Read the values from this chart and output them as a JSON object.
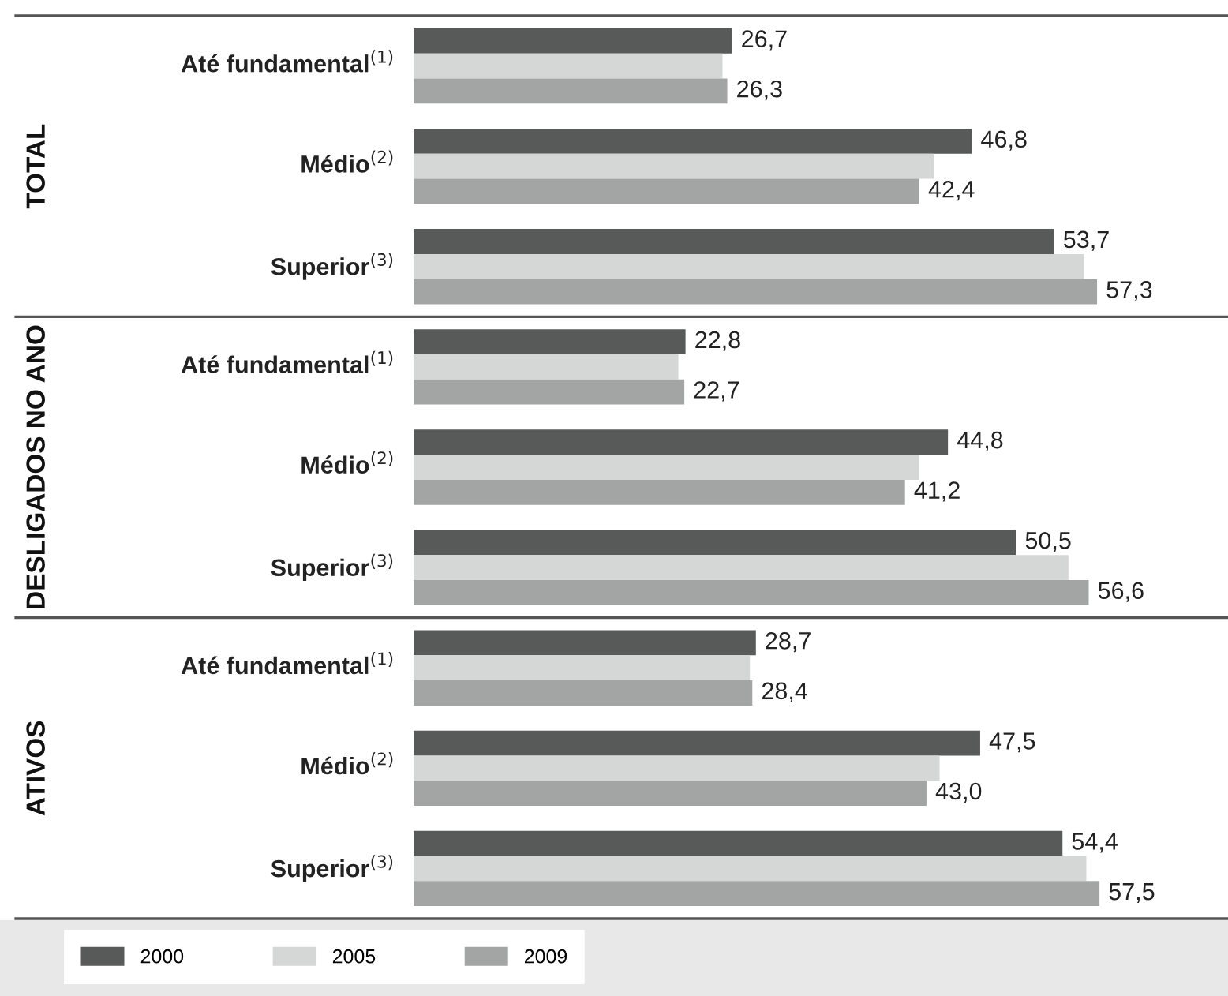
{
  "chart_data": {
    "type": "bar",
    "orientation": "horizontal",
    "legend": "bottom",
    "annotations": [
      "TOTAL",
      "DESLIGADOS NO ANO",
      "ATIVOS"
    ],
    "categories": [
      "Até fundamental$^{(1)}$",
      "Médio$^{(2)}$",
      "Superior$^{(3)}$",
      "Até fundamental$^{(1)}$",
      "Médio$^{(2)}$",
      "Superior$^{(3)}$",
      "Até fundamental$^{(1)}$",
      "Médio$^{(2)}$",
      "Superior$^{(3)}$"
    ],
    "series": [
      {
        "name": "2000",
        "color": "#575a59",
        "values": [
          26.7,
          46.8,
          53.7,
          22.8,
          44.8,
          50.5,
          28.7,
          47.5,
          54.4
        ],
        "value_labels": [
          "26,7",
          "46,8",
          "53,7",
          "22,8",
          "44,8",
          "50,5",
          "28,7",
          "47,5",
          "54,4"
        ]
      },
      {
        "name": "2005",
        "color": "#d5d7d6",
        "values": [
          25.9,
          43.6,
          56.2,
          22.2,
          42.4,
          54.9,
          28.2,
          44.1,
          56.4
        ]
      },
      {
        "name": "2009",
        "color": "#a2a5a4",
        "values": [
          26.3,
          42.4,
          57.3,
          22.7,
          41.2,
          56.6,
          28.4,
          43.0,
          57.5
        ],
        "value_labels": [
          "26,3",
          "42,4",
          "57,3",
          "22,7",
          "41,2",
          "56,6",
          "28,4",
          "43,0",
          "57,5"
        ]
      }
    ]
  }
}
